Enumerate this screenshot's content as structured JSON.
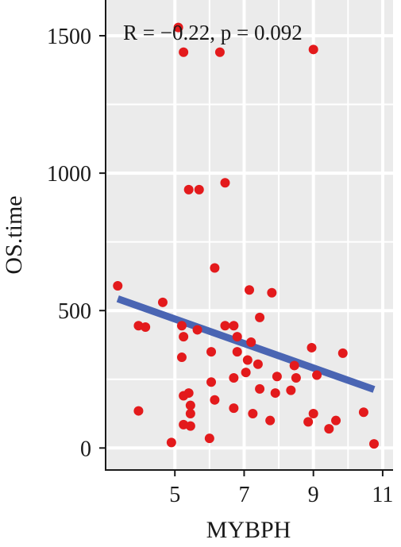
{
  "chart_data": {
    "type": "scatter",
    "title": "",
    "xlabel": "MYBPH",
    "ylabel": "OS.time",
    "xlim": [
      3.0,
      11.3
    ],
    "ylim": [
      -80,
      1630
    ],
    "x_ticks": [
      5,
      7,
      9,
      11
    ],
    "y_ticks": [
      0,
      500,
      1000,
      1500
    ],
    "grid": true,
    "background": "#ebebeb",
    "grid_color": "#ffffff",
    "point_color": "#e31a1c",
    "line_color": "#4a65b3",
    "annotation": "R = −0.22, p = 0.092",
    "points": [
      {
        "x": 5.1,
        "y": 1530
      },
      {
        "x": 5.25,
        "y": 1440
      },
      {
        "x": 6.3,
        "y": 1440
      },
      {
        "x": 9.0,
        "y": 1450
      },
      {
        "x": 6.45,
        "y": 965
      },
      {
        "x": 5.4,
        "y": 940
      },
      {
        "x": 5.7,
        "y": 940
      },
      {
        "x": 6.15,
        "y": 655
      },
      {
        "x": 3.35,
        "y": 590
      },
      {
        "x": 7.15,
        "y": 575
      },
      {
        "x": 7.8,
        "y": 565
      },
      {
        "x": 4.65,
        "y": 530
      },
      {
        "x": 7.45,
        "y": 475
      },
      {
        "x": 3.95,
        "y": 445
      },
      {
        "x": 4.15,
        "y": 440
      },
      {
        "x": 5.2,
        "y": 445
      },
      {
        "x": 6.45,
        "y": 445
      },
      {
        "x": 6.7,
        "y": 445
      },
      {
        "x": 5.65,
        "y": 430
      },
      {
        "x": 5.25,
        "y": 405
      },
      {
        "x": 6.8,
        "y": 405
      },
      {
        "x": 7.2,
        "y": 385
      },
      {
        "x": 6.05,
        "y": 350
      },
      {
        "x": 6.8,
        "y": 350
      },
      {
        "x": 8.95,
        "y": 365
      },
      {
        "x": 9.85,
        "y": 345
      },
      {
        "x": 5.2,
        "y": 330
      },
      {
        "x": 7.1,
        "y": 320
      },
      {
        "x": 7.4,
        "y": 305
      },
      {
        "x": 8.45,
        "y": 300
      },
      {
        "x": 7.05,
        "y": 275
      },
      {
        "x": 6.7,
        "y": 255
      },
      {
        "x": 7.95,
        "y": 260
      },
      {
        "x": 8.5,
        "y": 255
      },
      {
        "x": 9.1,
        "y": 265
      },
      {
        "x": 6.05,
        "y": 240
      },
      {
        "x": 7.45,
        "y": 215
      },
      {
        "x": 8.35,
        "y": 210
      },
      {
        "x": 5.4,
        "y": 200
      },
      {
        "x": 5.25,
        "y": 190
      },
      {
        "x": 7.9,
        "y": 200
      },
      {
        "x": 6.15,
        "y": 175
      },
      {
        "x": 5.45,
        "y": 155
      },
      {
        "x": 6.7,
        "y": 145
      },
      {
        "x": 3.95,
        "y": 135
      },
      {
        "x": 5.45,
        "y": 125
      },
      {
        "x": 7.25,
        "y": 125
      },
      {
        "x": 9.0,
        "y": 125
      },
      {
        "x": 10.45,
        "y": 130
      },
      {
        "x": 7.75,
        "y": 100
      },
      {
        "x": 8.85,
        "y": 95
      },
      {
        "x": 9.65,
        "y": 100
      },
      {
        "x": 5.25,
        "y": 85
      },
      {
        "x": 5.45,
        "y": 80
      },
      {
        "x": 9.45,
        "y": 70
      },
      {
        "x": 6.0,
        "y": 35
      },
      {
        "x": 4.9,
        "y": 20
      },
      {
        "x": 10.75,
        "y": 15
      }
    ],
    "fit_line": {
      "x": [
        3.35,
        10.75
      ],
      "y": [
        543,
        213
      ]
    }
  }
}
